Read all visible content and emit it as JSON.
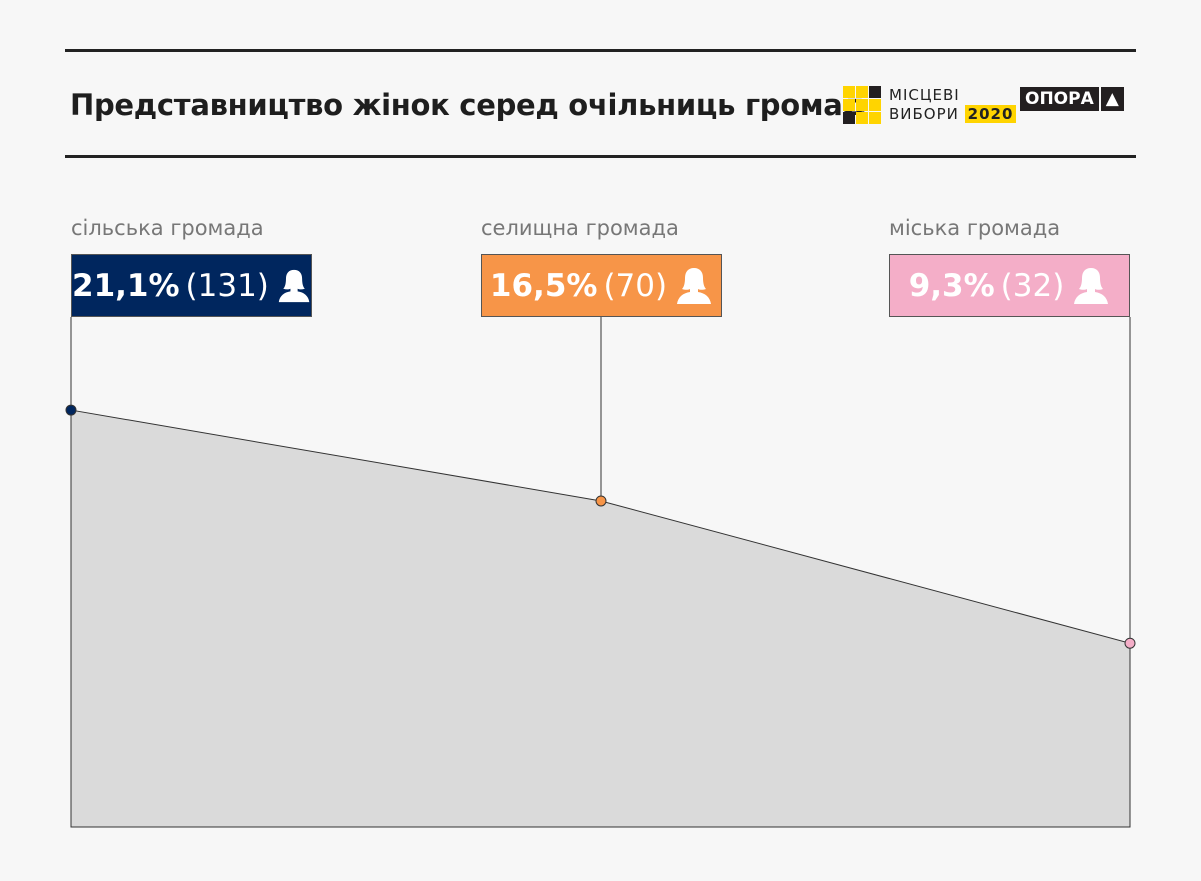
{
  "header": {
    "title": "Представництво жінок серед очільниць громад",
    "logo_elections": {
      "line1": "МІСЦЕВІ",
      "line2": "ВИБОРИ",
      "year": "2020"
    },
    "logo_opora": "ОПОРА"
  },
  "chart_data": {
    "type": "area",
    "title": "Представництво жінок серед очільниць громад",
    "categories": [
      "сільська громада",
      "селищна громада",
      "міська громада"
    ],
    "values": [
      21.1,
      16.5,
      9.3
    ],
    "value_labels": [
      "21,1%",
      "16,5%",
      "9,3%"
    ],
    "counts": [
      "(131)",
      "(70)",
      "(32)"
    ],
    "colors": [
      "#00265e",
      "#f79548",
      "#f4aec8"
    ],
    "area_color": "#dadada",
    "ylim": [
      0,
      25
    ],
    "icon": "woman-icon",
    "grid": false
  }
}
